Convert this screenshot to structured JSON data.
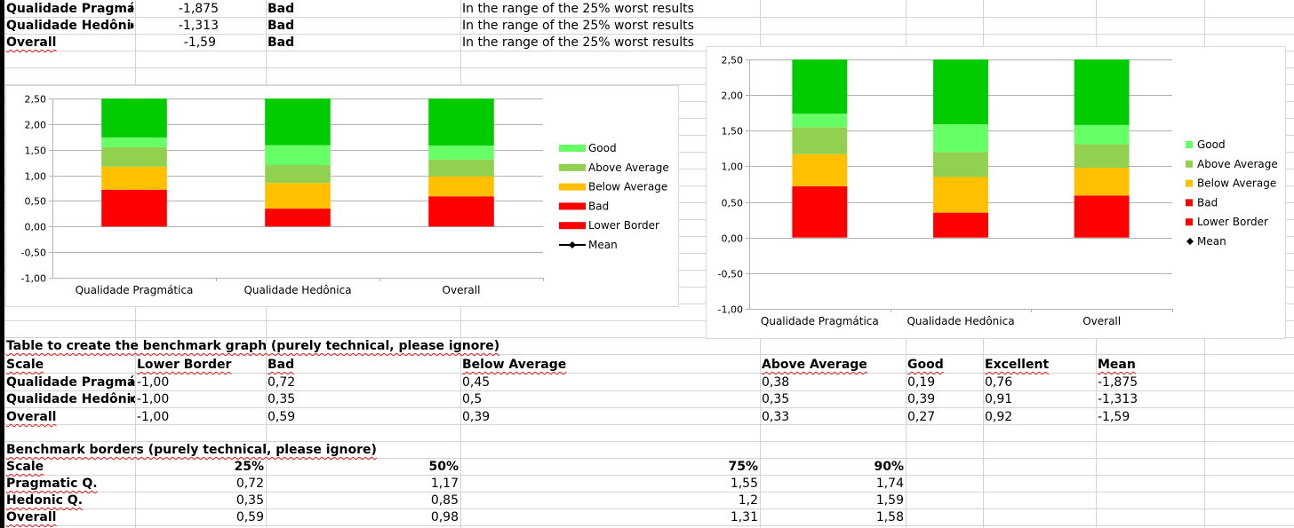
{
  "top_rows": [
    {
      "label": "Qualidade Pragmática",
      "mean": "-1,875",
      "category": "Bad",
      "comment": "In the range of the 25% worst results"
    },
    {
      "label": "Qualidade Hedônica",
      "mean": "-1,313",
      "category": "Bad",
      "comment": "In the range of the 25% worst results"
    },
    {
      "label": "Overall",
      "mean": "-1,59",
      "category": "Bad",
      "comment": "In the range of the 25% worst results"
    }
  ],
  "bench_table": {
    "title": "Table to create the benchmark graph (purely technical, please ignore)",
    "headers": [
      "Scale",
      "Lower Border",
      "Bad",
      "Below Average",
      "Above Average",
      "Good",
      "Excellent",
      "Mean"
    ],
    "rows": [
      [
        "Qualidade Pragmática",
        "-1,00",
        "0,72",
        "0,45",
        "0,38",
        "0,19",
        "0,76",
        "-1,875"
      ],
      [
        "Qualidade Hedônica",
        "-1,00",
        "0,35",
        "0,5",
        "0,35",
        "0,39",
        "0,91",
        "-1,313"
      ],
      [
        "Overall",
        "-1,00",
        "0,59",
        "0,39",
        "0,33",
        "0,27",
        "0,92",
        "-1,59"
      ]
    ]
  },
  "borders_table": {
    "title": "Benchmark borders (purely technical, please ignore)",
    "headers": [
      "Scale",
      "25%",
      "50%",
      "75%",
      "90%"
    ],
    "rows": [
      [
        "Pragmatic Q.",
        "0,72",
        "1,17",
        "1,55",
        "1,74"
      ],
      [
        "Hedonic Q.",
        "0,35",
        "0,85",
        "1,2",
        "1,59"
      ],
      [
        "Overall",
        "0,59",
        "0,98",
        "1,31",
        "1,58"
      ]
    ]
  },
  "chart_data": [
    {
      "type": "bar",
      "stacked": true,
      "categories": [
        "Qualidade Pragmática",
        "Qualidade Hedônica",
        "Overall"
      ],
      "series": [
        {
          "name": "Bad",
          "values": [
            0.72,
            0.35,
            0.59
          ],
          "color": "#ff0000"
        },
        {
          "name": "Below Average",
          "values": [
            0.45,
            0.5,
            0.39
          ],
          "color": "#ffc000"
        },
        {
          "name": "Above Average",
          "values": [
            0.38,
            0.35,
            0.33
          ],
          "color": "#92d050"
        },
        {
          "name": "Good",
          "values": [
            0.19,
            0.39,
            0.27
          ],
          "color": "#66ff66"
        },
        {
          "name": "Excellent",
          "values": [
            0.76,
            0.91,
            0.92
          ],
          "color": "#00cc00"
        }
      ],
      "legend": [
        "Good",
        "Above Average",
        "Below Average",
        "Bad",
        "Lower Border",
        "Mean"
      ],
      "legend_colors": [
        "#66ff66",
        "#92d050",
        "#ffc000",
        "#ff0000",
        "#ff0000",
        "#000000"
      ],
      "legend_position": "right",
      "ylim": [
        -1,
        2.5
      ],
      "yticks": [
        "2,50",
        "2,00",
        "1,50",
        "1,00",
        "0,50",
        "0,00",
        "-0,50",
        "-1,00"
      ],
      "grid": true
    },
    {
      "type": "bar",
      "stacked": true,
      "categories": [
        "Qualidade Pragmática",
        "Qualidade Hedônica",
        "Overall"
      ],
      "series": [
        {
          "name": "Bad",
          "values": [
            0.72,
            0.35,
            0.59
          ],
          "color": "#ff0000"
        },
        {
          "name": "Below Average",
          "values": [
            0.45,
            0.5,
            0.39
          ],
          "color": "#ffc000"
        },
        {
          "name": "Above Average",
          "values": [
            0.38,
            0.35,
            0.33
          ],
          "color": "#92d050"
        },
        {
          "name": "Good",
          "values": [
            0.19,
            0.39,
            0.27
          ],
          "color": "#66ff66"
        },
        {
          "name": "Excellent",
          "values": [
            0.76,
            0.91,
            0.92
          ],
          "color": "#00cc00"
        }
      ],
      "legend": [
        "Good",
        "Above Average",
        "Below Average",
        "Bad",
        "Lower Border",
        "Mean"
      ],
      "legend_colors": [
        "#66ff66",
        "#92d050",
        "#ffc000",
        "#ff0000",
        "#ff0000",
        "#000000"
      ],
      "legend_position": "right",
      "ylim": [
        -1,
        2.5
      ],
      "yticks": [
        "2,50",
        "2,00",
        "1,50",
        "1,00",
        "0,50",
        "0,00",
        "-0,50",
        "-1,00"
      ],
      "grid": true
    }
  ]
}
